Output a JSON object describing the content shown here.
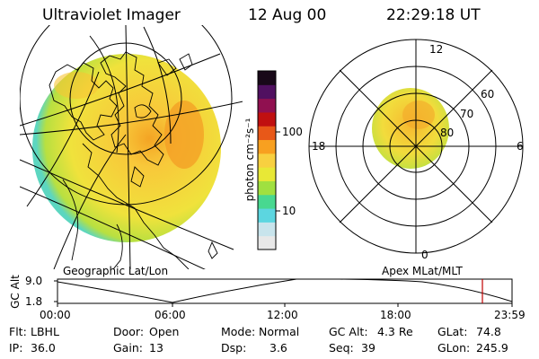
{
  "header": {
    "instrument": "Ultraviolet Imager",
    "date": "12 Aug 00",
    "time": "22:29:18 UT"
  },
  "colorbar": {
    "unit_label": "photon cm⁻²s⁻¹",
    "tick_high": "100",
    "tick_low": "10",
    "colors": [
      "#e8e8e8",
      "#c8e4ec",
      "#5cd6e0",
      "#48d890",
      "#a0e040",
      "#e8e836",
      "#f8d040",
      "#f8a020",
      "#e85818",
      "#c01010",
      "#901050",
      "#501060",
      "#180818"
    ]
  },
  "polar": {
    "mlt_labels": {
      "top": "12",
      "left": "18",
      "right": "6",
      "bottom": "0"
    },
    "mlat_labels": [
      "60",
      "70",
      "80"
    ]
  },
  "geo_label": "Geographic Lat/Lon",
  "apex_label": "Apex MLat/MLT",
  "altitude_plot": {
    "axis_label": "GC Alt",
    "y_ticks": [
      "9.0",
      "1.8"
    ],
    "x_ticks": [
      "00:00",
      "06:00",
      "12:00",
      "18:00",
      "23:59"
    ],
    "current_marker_color": "#c00000"
  },
  "info": {
    "filter": {
      "label": "Flt:",
      "value": "LBHL"
    },
    "ip": {
      "label": "IP:",
      "value": "36.0"
    },
    "door": {
      "label": "Door:",
      "value": "Open"
    },
    "gain": {
      "label": "Gain:",
      "value": "13"
    },
    "mode": {
      "label": "Mode:",
      "value": "Normal"
    },
    "dsp": {
      "label": "Dsp:",
      "value": "3.6"
    },
    "gc_alt": {
      "label": "GC Alt:",
      "value": "4.3 Re"
    },
    "seq": {
      "label": "Seq:",
      "value": "39"
    },
    "glat": {
      "label": "GLat:",
      "value": "74.8"
    },
    "glon": {
      "label": "GLon:",
      "value": "245.9"
    }
  }
}
